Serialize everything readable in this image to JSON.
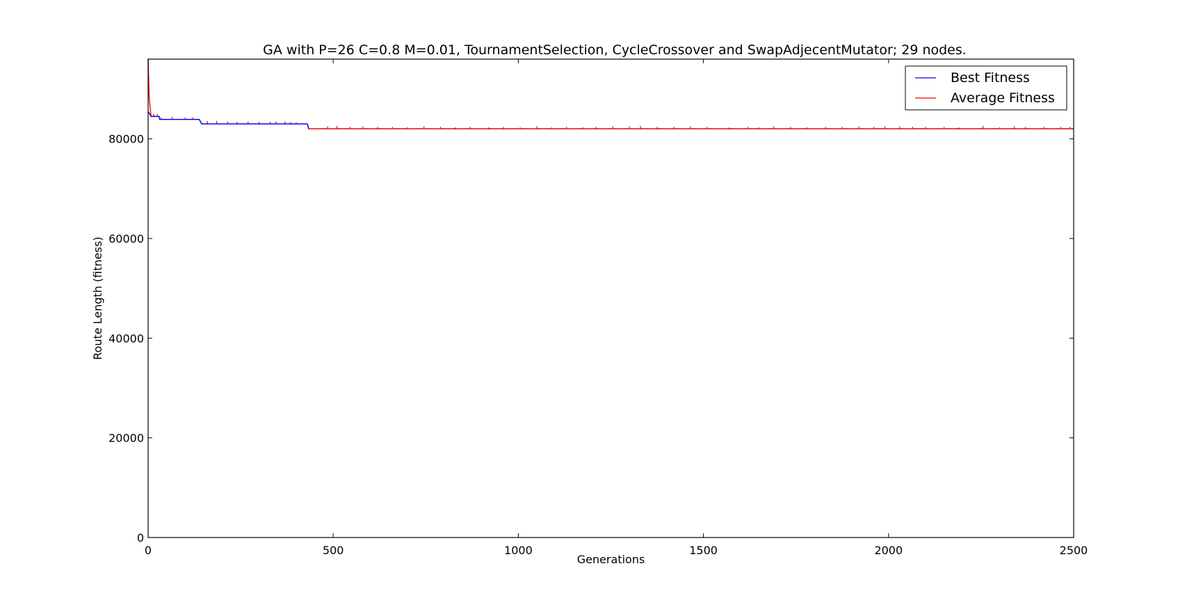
{
  "chart_data": {
    "type": "line",
    "title": "GA with P=26 C=0.8 M=0.01, TournamentSelection, CycleCrossover and SwapAdjecentMutator; 29 nodes.",
    "xlabel": "Generations",
    "ylabel": "Route Length (fitness)",
    "xlim": [
      0,
      2500
    ],
    "ylim": [
      0,
      96000
    ],
    "xticks": [
      0,
      500,
      1000,
      1500,
      2000,
      2500
    ],
    "xtick_labels": [
      "0",
      "500",
      "1000",
      "1500",
      "2000",
      "2500"
    ],
    "yticks": [
      0,
      20000,
      40000,
      60000,
      80000
    ],
    "ytick_labels": [
      "0",
      "20000",
      "40000",
      "60000",
      "80000"
    ],
    "grid": false,
    "legend_position": "top-right",
    "series": [
      {
        "name": "Best Fitness",
        "color": "#0000ff",
        "x": [
          0,
          8,
          30,
          31,
          138,
          145,
          430,
          434,
          2500
        ],
        "y": [
          85500,
          84500,
          84500,
          83900,
          83900,
          83000,
          83000,
          82000,
          82000
        ]
      },
      {
        "name": "Average Fitness",
        "color": "#ff0000",
        "base_x": [
          0,
          3,
          8,
          30,
          31,
          138,
          145,
          430,
          434,
          2500
        ],
        "base_y": [
          96000,
          88000,
          84500,
          84500,
          83900,
          83900,
          83000,
          83000,
          82000,
          82000
        ],
        "spikes_x": [
          15,
          25,
          35,
          65,
          100,
          120,
          160,
          185,
          215,
          240,
          270,
          300,
          330,
          345,
          370,
          385,
          400,
          485,
          510,
          545,
          580,
          620,
          660,
          700,
          745,
          790,
          830,
          870,
          920,
          960,
          1005,
          1050,
          1090,
          1130,
          1175,
          1210,
          1255,
          1300,
          1330,
          1375,
          1420,
          1465,
          1510,
          1570,
          1620,
          1650,
          1690,
          1735,
          1780,
          1830,
          1875,
          1920,
          1960,
          1990,
          2030,
          2065,
          2100,
          2150,
          2190,
          2255,
          2300,
          2340,
          2370,
          2420,
          2465,
          2490
        ],
        "spikes_y": [
          85000,
          85000,
          84300,
          84400,
          84300,
          84300,
          83600,
          83600,
          83500,
          83400,
          83500,
          83400,
          83400,
          83500,
          83500,
          83400,
          83300,
          82500,
          82600,
          82400,
          82500,
          82400,
          82400,
          82300,
          82500,
          82400,
          82300,
          82400,
          82300,
          82400,
          82300,
          82500,
          82300,
          82400,
          82300,
          82400,
          82500,
          82500,
          82600,
          82400,
          82400,
          82500,
          82400,
          82300,
          82400,
          82300,
          82500,
          82400,
          82300,
          82400,
          82400,
          82500,
          82400,
          82500,
          82500,
          82400,
          82400,
          82400,
          82300,
          82600,
          82300,
          82500,
          82400,
          82400,
          82400,
          82400
        ]
      }
    ]
  }
}
